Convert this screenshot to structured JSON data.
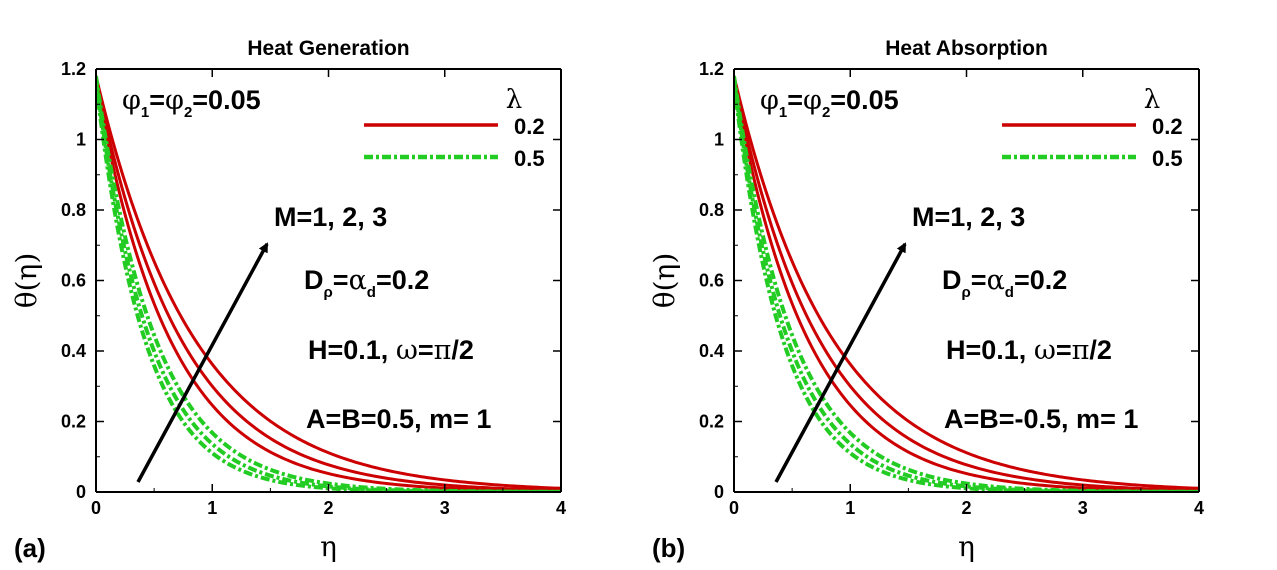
{
  "chart_data": [
    {
      "type": "line",
      "panel_label": "(a)",
      "title": "Heat Generation",
      "xlabel": "η",
      "ylabel": "θ(η)",
      "xlim": [
        0,
        4
      ],
      "ylim": [
        0,
        1.2
      ],
      "xticks": [
        0,
        1,
        2,
        3,
        4
      ],
      "yticks": [
        0,
        0.2,
        0.4,
        0.6,
        0.8,
        1,
        1.2
      ],
      "ytick_labels": [
        "0",
        "0.2",
        "0.4",
        "0.6",
        "0.8",
        "1",
        "1.2"
      ],
      "legend": {
        "title": "λ",
        "entries": [
          "0.2",
          "0.5"
        ]
      },
      "annotations": {
        "phi": {
          "phi1": "φ",
          "sub1": "1",
          "eq1": "=",
          "phi2": "φ",
          "sub2": "2",
          "val": "=0.05"
        },
        "arrow_label": "M=1, 2, 3",
        "d_line": {
          "d": "D",
          "rho": "ρ",
          "eq": "=",
          "alpha": "α",
          "sub_d": "d",
          "val": "=0.2"
        },
        "h_line": {
          "h": "H=0.1, ",
          "omega": "ω",
          "eq": "=",
          "pi": "π",
          "rest": "/2"
        },
        "ab_line": "A=B=0.5, m= 1"
      },
      "series": [
        {
          "name": "λ=0.2, M=1",
          "lambda": "0.2",
          "color": "#cc0000",
          "style": "solid",
          "theta0": 1.16,
          "decay": 1.55
        },
        {
          "name": "λ=0.2, M=2",
          "lambda": "0.2",
          "color": "#cc0000",
          "style": "solid",
          "theta0": 1.17,
          "decay": 1.36
        },
        {
          "name": "λ=0.2, M=3",
          "lambda": "0.2",
          "color": "#cc0000",
          "style": "solid",
          "theta0": 1.18,
          "decay": 1.18
        },
        {
          "name": "λ=0.5, M=1",
          "lambda": "0.5",
          "color": "#22cc22",
          "style": "dashdot",
          "theta0": 1.16,
          "decay": 2.35
        },
        {
          "name": "λ=0.5, M=2",
          "lambda": "0.5",
          "color": "#22cc22",
          "style": "dashdot",
          "theta0": 1.17,
          "decay": 2.15
        },
        {
          "name": "λ=0.5, M=3",
          "lambda": "0.5",
          "color": "#22cc22",
          "style": "dashdot",
          "theta0": 1.18,
          "decay": 1.95
        }
      ]
    },
    {
      "type": "line",
      "panel_label": "(b)",
      "title": "Heat Absorption",
      "xlabel": "η",
      "ylabel": "θ(η)",
      "xlim": [
        0,
        4
      ],
      "ylim": [
        0,
        1.2
      ],
      "xticks": [
        0,
        1,
        2,
        3,
        4
      ],
      "yticks": [
        0,
        0.2,
        0.4,
        0.6,
        0.8,
        1,
        1.2
      ],
      "ytick_labels": [
        "0",
        "0.2",
        "0.4",
        "0.6",
        "0.8",
        "1",
        "1.2"
      ],
      "legend": {
        "title": "λ",
        "entries": [
          "0.2",
          "0.5"
        ]
      },
      "annotations": {
        "phi": {
          "phi1": "φ",
          "sub1": "1",
          "eq1": "=",
          "phi2": "φ",
          "sub2": "2",
          "val": "=0.05"
        },
        "arrow_label": "M=1, 2, 3",
        "d_line": {
          "d": "D",
          "rho": "ρ",
          "eq": "=",
          "alpha": "α",
          "sub_d": "d",
          "val": "=0.2"
        },
        "h_line": {
          "h": "H=0.1, ",
          "omega": "ω",
          "eq": "=",
          "pi": "π",
          "rest": "/2"
        },
        "ab_line": "A=B=-0.5, m= 1"
      },
      "series": [
        {
          "name": "λ=0.2, M=1",
          "lambda": "0.2",
          "color": "#cc0000",
          "style": "solid",
          "theta0": 1.16,
          "decay": 1.55
        },
        {
          "name": "λ=0.2, M=2",
          "lambda": "0.2",
          "color": "#cc0000",
          "style": "solid",
          "theta0": 1.17,
          "decay": 1.36
        },
        {
          "name": "λ=0.2, M=3",
          "lambda": "0.2",
          "color": "#cc0000",
          "style": "solid",
          "theta0": 1.18,
          "decay": 1.18
        },
        {
          "name": "λ=0.5, M=1",
          "lambda": "0.5",
          "color": "#22cc22",
          "style": "dashdot",
          "theta0": 1.16,
          "decay": 2.35
        },
        {
          "name": "λ=0.5, M=2",
          "lambda": "0.5",
          "color": "#22cc22",
          "style": "dashdot",
          "theta0": 1.17,
          "decay": 2.15
        },
        {
          "name": "λ=0.5, M=3",
          "lambda": "0.5",
          "color": "#22cc22",
          "style": "dashdot",
          "theta0": 1.18,
          "decay": 1.95
        }
      ]
    }
  ],
  "colors": {
    "red_series": "#cc0000",
    "green_series": "#22cc22",
    "axis": "#000000"
  }
}
